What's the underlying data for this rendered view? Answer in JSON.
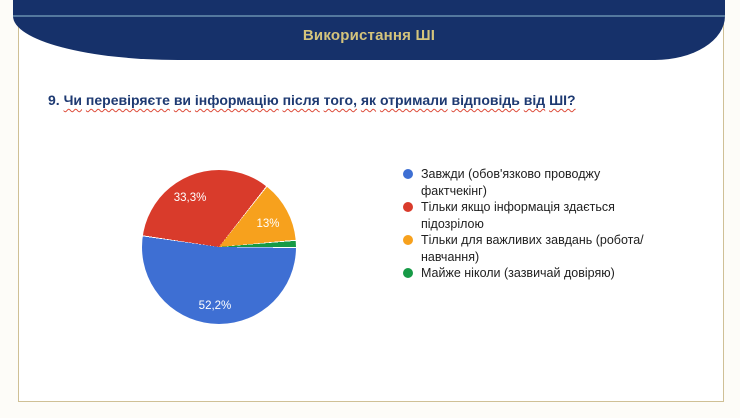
{
  "banner": {
    "title": "Використання ШІ",
    "bg_color": "#16316a",
    "title_color": "#d4c47c",
    "divider_color": "#54789e"
  },
  "question": {
    "number": "9.",
    "text": "Чи перевіряєте ви інформацію після того, як отримали відповідь від ШІ?"
  },
  "chart_data": {
    "type": "pie",
    "title": "9. Чи перевіряєте ви інформацію після того, як отримали відповідь від ШІ?",
    "labels": [
      "Завжди (обов'язково проводжу фактчекінг)",
      "Тільки якщо інформація здається підозрілою",
      "Тільки для важливих завдань (робота/навчання)",
      "Майже ніколи (зазвичай довіряю)"
    ],
    "values": [
      52.2,
      33.3,
      13,
      1.5
    ],
    "display_values": [
      "52,2%",
      "33,3%",
      "13%",
      ""
    ],
    "colors": [
      "#3e6fd3",
      "#d93b2b",
      "#f7a11d",
      "#169a46"
    ],
    "legend_position": "right",
    "slice_label_color": "#ffffff",
    "start_angle_deg_from_top": 90
  }
}
